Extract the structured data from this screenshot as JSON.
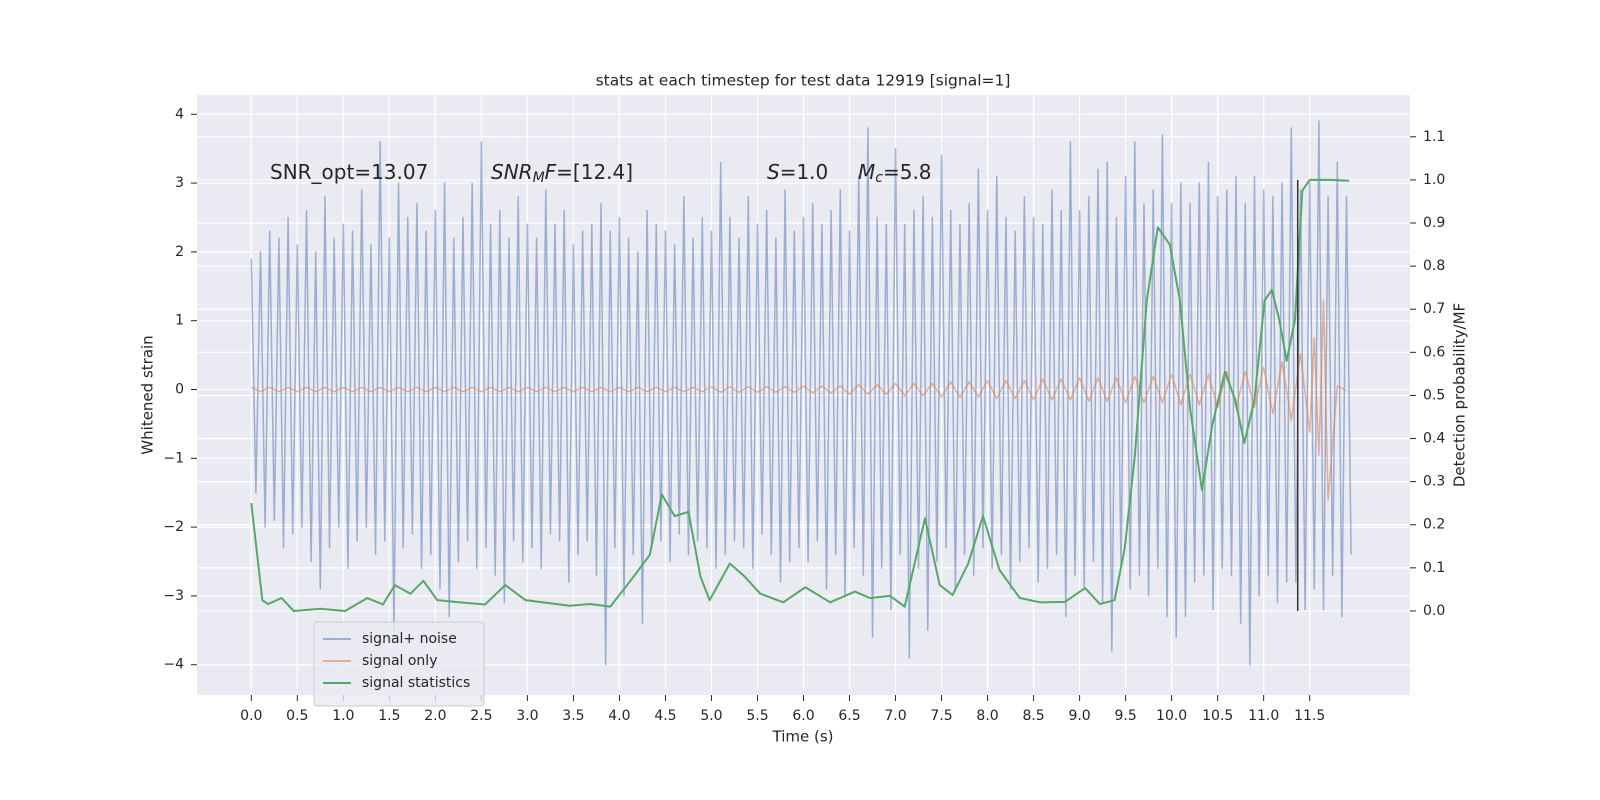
{
  "chart_data": {
    "type": "line",
    "title": "stats at each timestep for test data 12919 [signal=1]",
    "xlabel": "Time (s)",
    "ylabel": "Whitened strain",
    "y2label": "Detection probability/MF",
    "xlim": [
      -0.59,
      12.59
    ],
    "ylim": [
      -4.44,
      4.28
    ],
    "y2lim": [
      -0.195,
      1.197
    ],
    "xticks": [
      {
        "value": 0,
        "label": "0.0"
      },
      0.5,
      {
        "value": 1,
        "label": "1.0"
      },
      1.5,
      {
        "value": 2,
        "label": "2.0"
      },
      2.5,
      {
        "value": 3,
        "label": "3.0"
      },
      3.5,
      {
        "value": 4,
        "label": "4.0"
      },
      4.5,
      {
        "value": 5,
        "label": "5.0"
      },
      5.5,
      {
        "value": 6,
        "label": "6.0"
      },
      6.5,
      {
        "value": 7,
        "label": "7.0"
      },
      7.5,
      {
        "value": 8,
        "label": "8.0"
      },
      8.5,
      {
        "value": 9,
        "label": "9.0"
      },
      9.5,
      {
        "value": 10,
        "label": "10.0"
      },
      10.5,
      {
        "value": 11,
        "label": "11.0"
      },
      11.5
    ],
    "yticks": [
      {
        "value": -4,
        "label": "−4"
      },
      {
        "value": -3,
        "label": "−3"
      },
      {
        "value": -2,
        "label": "−2"
      },
      {
        "value": -1,
        "label": "−1"
      },
      0,
      1,
      2,
      3,
      4
    ],
    "y2ticks": [
      {
        "value": 0,
        "label": "0.0"
      },
      0.1,
      0.2,
      0.3,
      0.4,
      0.5,
      0.6,
      0.7,
      0.8,
      0.9,
      {
        "value": 1,
        "label": "1.0"
      },
      1.1
    ],
    "grid": true,
    "legend": "lower left",
    "series": [
      {
        "name": "signal+ noise",
        "color": "#4c72b0",
        "alpha": 0.5,
        "x": [
          0,
          0.05,
          0.1,
          0.15,
          0.2,
          0.25,
          0.3,
          0.35,
          0.4,
          0.45,
          0.5,
          0.55,
          0.6,
          0.65,
          0.7,
          0.75,
          0.8,
          0.85,
          0.9,
          0.95,
          1,
          1.05,
          1.1,
          1.15,
          1.2,
          1.25,
          1.3,
          1.35,
          1.4,
          1.45,
          1.5,
          1.55,
          1.6,
          1.65,
          1.7,
          1.75,
          1.8,
          1.85,
          1.9,
          1.95,
          2,
          2.05,
          2.1,
          2.15,
          2.2,
          2.25,
          2.3,
          2.35,
          2.4,
          2.45,
          2.5,
          2.55,
          2.6,
          2.65,
          2.7,
          2.75,
          2.8,
          2.85,
          2.9,
          2.95,
          3,
          3.05,
          3.1,
          3.15,
          3.2,
          3.25,
          3.3,
          3.35,
          3.4,
          3.45,
          3.5,
          3.55,
          3.6,
          3.65,
          3.7,
          3.75,
          3.8,
          3.85,
          3.9,
          3.95,
          4,
          4.05,
          4.1,
          4.15,
          4.2,
          4.25,
          4.3,
          4.35,
          4.4,
          4.45,
          4.5,
          4.55,
          4.6,
          4.65,
          4.7,
          4.75,
          4.8,
          4.85,
          4.9,
          4.95,
          5,
          5.05,
          5.1,
          5.15,
          5.2,
          5.25,
          5.3,
          5.35,
          5.4,
          5.45,
          5.5,
          5.55,
          5.6,
          5.65,
          5.7,
          5.75,
          5.8,
          5.85,
          5.9,
          5.95,
          6,
          6.05,
          6.1,
          6.15,
          6.2,
          6.25,
          6.3,
          6.35,
          6.4,
          6.45,
          6.5,
          6.55,
          6.6,
          6.65,
          6.7,
          6.75,
          6.8,
          6.85,
          6.9,
          6.95,
          7,
          7.05,
          7.1,
          7.15,
          7.2,
          7.25,
          7.3,
          7.35,
          7.4,
          7.45,
          7.5,
          7.55,
          7.6,
          7.65,
          7.7,
          7.75,
          7.8,
          7.85,
          7.9,
          7.95,
          8,
          8.05,
          8.1,
          8.15,
          8.2,
          8.25,
          8.3,
          8.35,
          8.4,
          8.45,
          8.5,
          8.55,
          8.6,
          8.65,
          8.7,
          8.75,
          8.8,
          8.85,
          8.9,
          8.95,
          9,
          9.05,
          9.1,
          9.15,
          9.2,
          9.25,
          9.3,
          9.35,
          9.4,
          9.45,
          9.5,
          9.55,
          9.6,
          9.65,
          9.7,
          9.75,
          9.8,
          9.85,
          9.9,
          9.95,
          10,
          10.05,
          10.1,
          10.15,
          10.2,
          10.25,
          10.3,
          10.35,
          10.4,
          10.45,
          10.5,
          10.55,
          10.6,
          10.65,
          10.7,
          10.75,
          10.8,
          10.85,
          10.9,
          10.95,
          11,
          11.05,
          11.1,
          11.15,
          11.2,
          11.25,
          11.3,
          11.35,
          11.4,
          11.45,
          11.5,
          11.55,
          11.6,
          11.65,
          11.7,
          11.75,
          11.8,
          11.85,
          11.9,
          11.95
        ],
        "values": [
          1.9,
          -1.5,
          2.0,
          -2.0,
          2.3,
          -1.9,
          2.2,
          -2.3,
          2.5,
          -2.1,
          2.1,
          -2.0,
          2.6,
          -2.5,
          2.0,
          -2.9,
          2.8,
          -2.3,
          2.2,
          -2.0,
          2.4,
          -2.6,
          2.3,
          -2.2,
          2.9,
          -2.0,
          2.1,
          -2.4,
          3.6,
          -2.2,
          2.2,
          -3.5,
          3.0,
          -2.3,
          2.5,
          -2.1,
          2.7,
          -2.6,
          2.3,
          -2.4,
          2.6,
          -2.9,
          3.0,
          -3.3,
          2.2,
          -2.5,
          2.5,
          -2.2,
          3.0,
          -2.6,
          3.6,
          -2.3,
          2.4,
          -2.7,
          2.6,
          -3.1,
          2.2,
          -2.2,
          2.8,
          -2.5,
          2.4,
          -2.3,
          2.2,
          -2.6,
          2.9,
          -2.1,
          2.4,
          -2.2,
          2.6,
          -2.8,
          2.1,
          -2.4,
          2.3,
          -2.2,
          2.4,
          -2.7,
          2.7,
          -4.0,
          2.3,
          -2.3,
          2.5,
          -3.0,
          2.2,
          -2.4,
          2.0,
          -3.4,
          2.6,
          -2.3,
          2.4,
          -2.2,
          2.3,
          -2.5,
          2.1,
          -2.1,
          2.8,
          -2.4,
          2.2,
          -2.2,
          2.5,
          -2.3,
          2.3,
          -2.6,
          3.3,
          -2.4,
          2.5,
          -2.2,
          2.2,
          -2.3,
          2.8,
          -2.6,
          2.4,
          -2.1,
          2.6,
          -2.4,
          2.2,
          -2.8,
          2.9,
          -2.5,
          2.3,
          -2.3,
          2.5,
          -2.5,
          2.7,
          -2.2,
          2.4,
          -2.9,
          2.6,
          -2.4,
          2.9,
          -3.0,
          2.3,
          -2.3,
          3.1,
          -2.7,
          3.8,
          -3.6,
          2.5,
          -2.6,
          2.4,
          -3.2,
          3.5,
          -2.4,
          2.4,
          -3.9,
          2.6,
          -2.6,
          2.8,
          -3.5,
          2.5,
          -2.5,
          3.4,
          -2.3,
          2.6,
          -2.9,
          2.4,
          -2.4,
          2.7,
          -2.7,
          3.2,
          -2.3,
          2.6,
          -2.6,
          3.1,
          -2.4,
          2.5,
          -2.9,
          2.3,
          -2.5,
          2.8,
          -2.3,
          2.5,
          -2.8,
          2.4,
          -2.6,
          2.9,
          -2.4,
          2.6,
          -3.3,
          3.6,
          -2.7,
          2.6,
          -2.9,
          2.8,
          -2.5,
          3.2,
          -3.1,
          3.3,
          -3.8,
          2.5,
          -2.6,
          3.1,
          -2.9,
          3.6,
          -2.7,
          2.7,
          -3.0,
          2.9,
          -2.6,
          3.7,
          -3.3,
          2.7,
          -3.6,
          3.0,
          -3.3,
          2.7,
          -2.8,
          3.0,
          -2.7,
          3.3,
          -3.2,
          2.8,
          -2.6,
          2.9,
          -2.7,
          3.1,
          -3.4,
          2.7,
          -4.0,
          3.1,
          -3.0,
          2.9,
          -2.7,
          2.8,
          -3.1,
          3.0,
          -2.8,
          3.8,
          -2.8,
          2.9,
          -3.2,
          3.0,
          -2.9,
          3.9,
          -3.2,
          2.8,
          -2.7,
          3.3,
          -3.3,
          2.8,
          -2.4
        ]
      },
      {
        "name": "signal only",
        "color": "#dd8452",
        "alpha": 0.6,
        "x": [
          0,
          0.1,
          0.2,
          0.3,
          0.4,
          0.5,
          0.6,
          0.7,
          0.8,
          0.9,
          1,
          1.1,
          1.2,
          1.3,
          1.4,
          1.5,
          1.6,
          1.7,
          1.8,
          1.9,
          2,
          2.1,
          2.2,
          2.3,
          2.4,
          2.5,
          2.6,
          2.7,
          2.8,
          2.9,
          3,
          3.1,
          3.2,
          3.3,
          3.4,
          3.5,
          3.6,
          3.7,
          3.8,
          3.9,
          4,
          4.1,
          4.2,
          4.3,
          4.4,
          4.5,
          4.6,
          4.7,
          4.8,
          4.9,
          5,
          5.1,
          5.2,
          5.3,
          5.4,
          5.5,
          5.6,
          5.7,
          5.8,
          5.9,
          6,
          6.1,
          6.2,
          6.3,
          6.4,
          6.5,
          6.6,
          6.7,
          6.8,
          6.9,
          7,
          7.1,
          7.2,
          7.3,
          7.4,
          7.5,
          7.6,
          7.7,
          7.8,
          7.9,
          8,
          8.1,
          8.2,
          8.3,
          8.4,
          8.5,
          8.6,
          8.7,
          8.8,
          8.9,
          9,
          9.1,
          9.2,
          9.3,
          9.4,
          9.5,
          9.6,
          9.7,
          9.8,
          9.9,
          10,
          10.1,
          10.2,
          10.3,
          10.4,
          10.5,
          10.6,
          10.7,
          10.8,
          10.9,
          11,
          11.1,
          11.2,
          11.3,
          11.4,
          11.5,
          11.55,
          11.6,
          11.65,
          11.7,
          11.8,
          11.9
        ],
        "values": [
          0.03,
          -0.03,
          0.03,
          -0.03,
          0.03,
          -0.03,
          0.03,
          -0.03,
          0.03,
          -0.03,
          0.03,
          -0.03,
          0.03,
          -0.03,
          0.03,
          -0.03,
          0.03,
          -0.03,
          0.03,
          -0.03,
          0.03,
          -0.03,
          0.03,
          -0.03,
          0.03,
          -0.03,
          0.03,
          -0.03,
          0.03,
          -0.03,
          0.03,
          -0.03,
          0.03,
          -0.03,
          0.03,
          -0.03,
          0.03,
          -0.03,
          0.03,
          -0.03,
          0.03,
          -0.03,
          0.03,
          -0.03,
          0.03,
          -0.03,
          0.03,
          -0.03,
          0.03,
          -0.03,
          0.04,
          -0.04,
          0.04,
          -0.04,
          0.04,
          -0.04,
          0.04,
          -0.04,
          0.04,
          -0.04,
          0.05,
          -0.05,
          0.05,
          -0.05,
          0.05,
          -0.07,
          0.07,
          -0.07,
          0.07,
          -0.07,
          0.09,
          -0.09,
          0.09,
          -0.09,
          0.09,
          -0.11,
          0.11,
          -0.11,
          0.11,
          -0.11,
          0.13,
          -0.13,
          0.13,
          -0.13,
          0.13,
          -0.15,
          0.15,
          -0.15,
          0.15,
          -0.15,
          0.17,
          -0.17,
          0.17,
          -0.17,
          0.17,
          -0.19,
          0.19,
          -0.19,
          0.19,
          -0.19,
          0.22,
          -0.22,
          0.22,
          -0.22,
          0.22,
          -0.26,
          0.26,
          -0.26,
          0.26,
          -0.26,
          0.32,
          -0.35,
          0.4,
          -0.45,
          0.52,
          -0.62,
          0.75,
          -0.95,
          1.3,
          -1.6,
          0.05,
          -0.02
        ]
      },
      {
        "name": "signal statistics",
        "color": "#55a868",
        "alpha": 1,
        "axis": "y2",
        "x": [
          0,
          0.12,
          0.18,
          0.33,
          0.46,
          0.75,
          1.02,
          1.26,
          1.43,
          1.56,
          1.73,
          1.87,
          2.02,
          2.27,
          2.54,
          2.76,
          2.98,
          3.46,
          3.68,
          3.9,
          4.12,
          4.33,
          4.46,
          4.6,
          4.75,
          4.88,
          4.98,
          5.2,
          5.36,
          5.53,
          5.78,
          6.02,
          6.29,
          6.56,
          6.72,
          6.94,
          7.1,
          7.32,
          7.48,
          7.62,
          7.79,
          7.95,
          8.13,
          8.35,
          8.57,
          8.84,
          9.06,
          9.22,
          9.38,
          9.49,
          9.6,
          9.73,
          9.85,
          9.98,
          10.09,
          10.2,
          10.33,
          10.44,
          10.58,
          10.69,
          10.79,
          10.9,
          11.01,
          11.09,
          11.17,
          11.25,
          11.34,
          11.42,
          11.5,
          11.72,
          11.93
        ],
        "values": [
          0.25,
          0.025,
          0.016,
          0.03,
          0.0,
          0.005,
          0.0,
          0.03,
          0.015,
          0.06,
          0.04,
          0.07,
          0.025,
          0.02,
          0.015,
          0.06,
          0.025,
          0.012,
          0.016,
          0.01,
          0.07,
          0.13,
          0.27,
          0.22,
          0.23,
          0.08,
          0.025,
          0.11,
          0.08,
          0.04,
          0.02,
          0.055,
          0.02,
          0.045,
          0.03,
          0.035,
          0.01,
          0.215,
          0.06,
          0.037,
          0.11,
          0.22,
          0.095,
          0.03,
          0.02,
          0.021,
          0.053,
          0.016,
          0.025,
          0.145,
          0.36,
          0.72,
          0.89,
          0.85,
          0.72,
          0.47,
          0.28,
          0.43,
          0.555,
          0.49,
          0.39,
          0.49,
          0.72,
          0.745,
          0.675,
          0.58,
          0.675,
          0.975,
          1.0,
          1.0,
          0.998
        ]
      }
    ],
    "vline": {
      "x": 11.37,
      "ymin": 0,
      "ymax": 1,
      "color": "#333333",
      "axis": "y2"
    },
    "annotations": [
      [
        {
          "text": "SNR_opt=13.07"
        }
      ],
      [
        {
          "text": "SNR",
          "italic": true
        },
        {
          "text": "M",
          "italic": true,
          "sub": true
        },
        {
          "text": "F",
          "italic": true
        },
        {
          "text": "=[12.4]"
        }
      ],
      [
        {
          "text": "S",
          "italic": true
        },
        {
          "text": "=1.0"
        }
      ],
      [
        {
          "text": "M",
          "italic": true
        },
        {
          "text": "c",
          "italic": true,
          "sub": true
        },
        {
          "text": "=5.8"
        }
      ]
    ]
  }
}
